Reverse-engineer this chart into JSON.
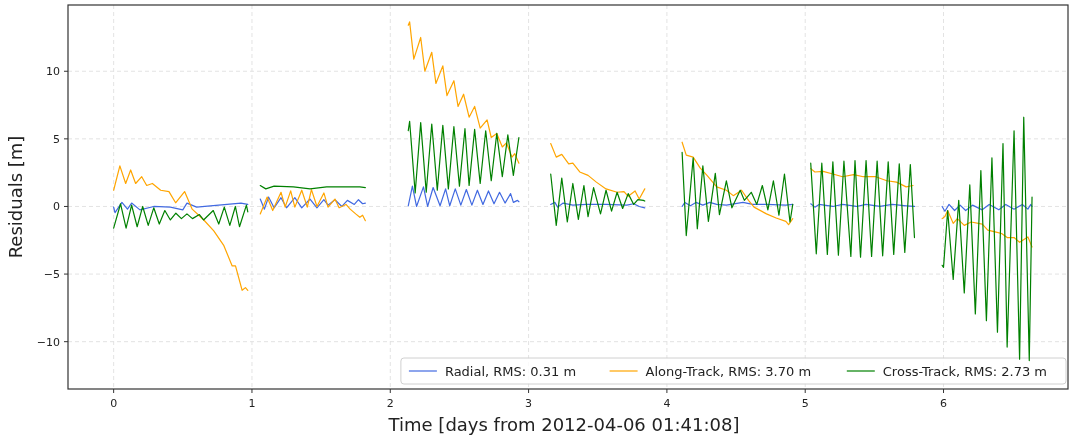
{
  "chart_data": {
    "type": "line",
    "xlabel": "Time [days from 2012-04-06 01:41:08]",
    "ylabel": "Residuals [m]",
    "xlim": [
      -0.33,
      6.9
    ],
    "ylim": [
      -13.5,
      14.9
    ],
    "xticks": [
      0,
      1,
      2,
      3,
      4,
      5,
      6
    ],
    "yticks": [
      {
        "value": -10,
        "label": "−10"
      },
      {
        "value": -5,
        "label": "−5"
      },
      0,
      5,
      10
    ],
    "grid": true,
    "legend": "bottom right",
    "line_style": "solid",
    "marker": "none",
    "series": [
      {
        "name": "Radial, RMS: 0.31 m",
        "color": "#4169e1",
        "x": [
          0,
          0.01,
          0.06,
          0.1,
          0.13,
          0.19,
          0.29,
          0.41,
          0.5,
          0.53,
          0.6,
          0.7,
          0.82,
          0.92,
          0.97,
          1.01,
          1.06,
          1.09,
          1.12,
          1.16,
          1.21,
          1.25,
          1.31,
          1.36,
          1.42,
          1.47,
          1.52,
          1.55,
          1.6,
          1.65,
          1.69,
          1.74,
          1.77,
          1.8,
          1.82,
          2.0,
          2.13,
          2.16,
          2.19,
          2.24,
          2.27,
          2.31,
          2.36,
          2.4,
          2.43,
          2.47,
          2.51,
          2.55,
          2.59,
          2.63,
          2.67,
          2.71,
          2.75,
          2.79,
          2.83,
          2.87,
          2.89,
          2.92,
          2.93,
          3.05,
          3.16,
          3.19,
          3.21,
          3.25,
          3.32,
          3.42,
          3.56,
          3.71,
          3.76,
          3.8,
          3.84,
          4.0,
          4.11,
          4.13,
          4.17,
          4.21,
          4.26,
          4.31,
          4.36,
          4.43,
          4.55,
          4.62,
          4.72,
          4.86,
          4.91,
          4.98,
          5.04,
          5.07,
          5.1,
          5.2,
          5.27,
          5.37,
          5.44,
          5.54,
          5.63,
          5.73,
          5.79,
          5.9,
          5.99,
          6.01,
          6.04,
          6.08,
          6.12,
          6.16,
          6.21,
          6.28,
          6.33,
          6.4,
          6.45,
          6.51,
          6.57,
          6.61,
          6.63,
          6.64
        ],
        "values": [
          -0.05,
          -0.45,
          0.3,
          -0.2,
          0.25,
          -0.25,
          0,
          -0.05,
          -0.25,
          0.25,
          -0.05,
          0.05,
          0.15,
          0.25,
          0.15,
          null,
          0.55,
          -0.2,
          0.7,
          -0.1,
          0.65,
          -0.1,
          0.65,
          -0.1,
          0.55,
          -0.1,
          0.5,
          0.1,
          0.5,
          0,
          0.45,
          0.15,
          0.5,
          0.2,
          0.25,
          null,
          0.05,
          1.5,
          0,
          1.45,
          0,
          1.4,
          0.05,
          1.3,
          0.05,
          1.3,
          0.1,
          1.25,
          0.1,
          1.2,
          0.15,
          1.15,
          0.2,
          1.05,
          0.25,
          0.95,
          0.3,
          0.45,
          0.35,
          null,
          0.15,
          0.3,
          -0.05,
          0.25,
          0.1,
          0.15,
          0.15,
          0.1,
          0.2,
          0,
          -0.1,
          null,
          0,
          0.3,
          0.05,
          0.3,
          0.1,
          0.3,
          0.15,
          0.1,
          0.3,
          0.15,
          0.15,
          0.1,
          0.15,
          null,
          0.2,
          -0.05,
          0.15,
          0,
          0.15,
          0,
          0.15,
          0,
          0.15,
          0.05,
          0,
          null,
          0,
          -0.35,
          0.15,
          -0.3,
          0.1,
          -0.3,
          0.1,
          -0.25,
          0.15,
          -0.25,
          0.15,
          -0.2,
          0.15,
          -0.2,
          0.15,
          0
        ]
      },
      {
        "name": "Along-Track, RMS: 3.70 m",
        "color": "#ffa500",
        "x": [
          0,
          0.045,
          0.087,
          0.123,
          0.159,
          0.203,
          0.239,
          0.28,
          0.34,
          0.4,
          0.448,
          0.513,
          0.568,
          0.652,
          0.724,
          0.797,
          0.857,
          0.881,
          0.929,
          0.953,
          0.97,
          1.01,
          1.06,
          1.11,
          1.15,
          1.21,
          1.24,
          1.28,
          1.31,
          1.36,
          1.4,
          1.43,
          1.47,
          1.52,
          1.55,
          1.6,
          1.63,
          1.68,
          1.71,
          1.75,
          1.78,
          1.8,
          1.82,
          2.0,
          2.13,
          2.14,
          2.17,
          2.22,
          2.25,
          2.3,
          2.33,
          2.38,
          2.41,
          2.46,
          2.49,
          2.53,
          2.57,
          2.61,
          2.65,
          2.7,
          2.73,
          2.77,
          2.81,
          2.84,
          2.88,
          2.9,
          2.93,
          3.05,
          3.16,
          3.2,
          3.24,
          3.29,
          3.32,
          3.37,
          3.43,
          3.49,
          3.56,
          3.64,
          3.69,
          3.72,
          3.77,
          3.8,
          3.84,
          4.0,
          4.11,
          4.14,
          4.19,
          4.24,
          4.29,
          4.36,
          4.43,
          4.48,
          4.54,
          4.59,
          4.63,
          4.72,
          4.79,
          4.86,
          4.88,
          4.91,
          4.98,
          5.04,
          5.07,
          5.13,
          5.2,
          5.27,
          5.35,
          5.42,
          5.51,
          5.59,
          5.66,
          5.73,
          5.78,
          5.9,
          5.99,
          6.01,
          6.03,
          6.07,
          6.1,
          6.15,
          6.2,
          6.28,
          6.32,
          6.38,
          6.42,
          6.46,
          6.51,
          6.55,
          6.61,
          6.64
        ],
        "values": [
          1.2,
          3.0,
          1.7,
          2.7,
          1.7,
          2.2,
          1.55,
          1.7,
          1.2,
          1.1,
          0.27,
          1.1,
          -0.2,
          -1.0,
          -1.8,
          -2.9,
          -4.4,
          -4.4,
          -6.2,
          -6.0,
          -6.2,
          null,
          -0.55,
          0.7,
          -0.3,
          1.05,
          -0.05,
          1.15,
          -0.05,
          1.2,
          -0.05,
          1.25,
          0,
          1.0,
          -0.05,
          0.55,
          -0.1,
          0.15,
          -0.2,
          -0.55,
          -0.8,
          -0.65,
          -1.05,
          null,
          13.4,
          13.65,
          10.9,
          12.5,
          10.0,
          11.4,
          9.1,
          10.4,
          8.2,
          9.3,
          7.4,
          8.3,
          6.6,
          7.4,
          5.8,
          6.4,
          5.1,
          5.4,
          4.4,
          4.7,
          3.65,
          3.9,
          3.2,
          null,
          4.65,
          3.65,
          3.85,
          3.15,
          3.2,
          2.55,
          2.3,
          1.8,
          1.3,
          1.05,
          1.1,
          0.75,
          1.15,
          0.55,
          1.3,
          null,
          4.75,
          3.8,
          3.65,
          2.85,
          2.3,
          1.45,
          1.2,
          0.8,
          1.2,
          0.45,
          -0.05,
          -0.55,
          -0.85,
          -1.1,
          -1.35,
          -0.9,
          null,
          2.8,
          2.55,
          2.6,
          2.4,
          2.2,
          2.35,
          2.2,
          2.2,
          1.9,
          1.8,
          1.45,
          1.55,
          null,
          -0.9,
          -0.75,
          -0.3,
          -1.25,
          -0.9,
          -1.4,
          -1.15,
          -1.3,
          -1.75,
          -1.9,
          -2.0,
          -2.3,
          -2.3,
          -2.65,
          -2.25,
          -3.0
        ]
      },
      {
        "name": "Cross-Track, RMS: 2.73 m",
        "color": "#008000",
        "x": [
          0,
          0.05,
          0.09,
          0.13,
          0.17,
          0.21,
          0.25,
          0.29,
          0.33,
          0.37,
          0.41,
          0.45,
          0.49,
          0.53,
          0.57,
          0.62,
          0.65,
          0.72,
          0.76,
          0.8,
          0.84,
          0.88,
          0.91,
          0.96,
          0.97,
          1.01,
          1.06,
          1.1,
          1.16,
          1.3,
          1.42,
          1.54,
          1.78,
          1.82,
          2.0,
          2.13,
          2.14,
          2.18,
          2.22,
          2.26,
          2.3,
          2.34,
          2.38,
          2.42,
          2.46,
          2.5,
          2.54,
          2.57,
          2.61,
          2.65,
          2.69,
          2.73,
          2.77,
          2.81,
          2.85,
          2.89,
          2.93,
          3.05,
          3.16,
          3.2,
          3.24,
          3.28,
          3.32,
          3.36,
          3.4,
          3.43,
          3.47,
          3.52,
          3.56,
          3.6,
          3.64,
          3.68,
          3.72,
          3.76,
          3.79,
          3.83,
          3.84,
          4.0,
          4.11,
          4.14,
          4.19,
          4.22,
          4.26,
          4.3,
          4.35,
          4.38,
          4.43,
          4.47,
          4.53,
          4.56,
          4.61,
          4.65,
          4.69,
          4.73,
          4.77,
          4.81,
          4.85,
          4.89,
          4.91,
          4.98,
          5.04,
          5.08,
          5.12,
          5.16,
          5.2,
          5.24,
          5.28,
          5.33,
          5.36,
          5.4,
          5.44,
          5.48,
          5.52,
          5.56,
          5.6,
          5.64,
          5.68,
          5.72,
          5.76,
          5.79,
          5.9,
          5.99,
          6.0,
          6.03,
          6.07,
          6.11,
          6.15,
          6.19,
          6.23,
          6.27,
          6.31,
          6.35,
          6.39,
          6.43,
          6.46,
          6.51,
          6.55,
          6.58,
          6.62,
          6.64
        ],
        "values": [
          -1.6,
          0.2,
          -1.6,
          0.1,
          -1.5,
          0,
          -1.4,
          -0.1,
          -1.3,
          -0.3,
          -1.0,
          -0.5,
          -0.9,
          -0.55,
          -0.9,
          -0.6,
          -1.0,
          -0.3,
          -1.3,
          -0.05,
          -1.4,
          0,
          -1.5,
          0.1,
          -0.4,
          null,
          1.55,
          1.3,
          1.5,
          1.45,
          1.3,
          1.45,
          1.45,
          1.4,
          null,
          5.6,
          6.3,
          1.0,
          6.2,
          1.05,
          6.1,
          1.2,
          6.0,
          1.3,
          5.9,
          1.5,
          5.75,
          1.55,
          5.7,
          1.7,
          5.6,
          1.9,
          5.4,
          2.2,
          5.3,
          2.3,
          5.1,
          null,
          2.4,
          -1.4,
          2.1,
          -1.15,
          1.7,
          -0.95,
          1.55,
          -0.75,
          1.4,
          -0.55,
          1.2,
          -0.35,
          1.05,
          -0.15,
          0.95,
          0.15,
          0.5,
          0.45,
          0.4,
          null,
          4.0,
          -2.15,
          3.6,
          -1.65,
          3.0,
          -1.1,
          2.45,
          -0.6,
          1.9,
          -0.1,
          1.2,
          0.45,
          1.05,
          0.15,
          1.55,
          -0.25,
          1.9,
          -0.65,
          2.4,
          -1.15,
          0.15,
          null,
          3.2,
          -3.5,
          3.2,
          -3.55,
          3.3,
          -3.6,
          3.35,
          -3.7,
          3.4,
          -3.75,
          3.4,
          -3.7,
          3.35,
          -3.65,
          3.3,
          -3.55,
          3.15,
          -3.4,
          3.1,
          -2.3,
          null,
          -4.35,
          -4.5,
          -0.3,
          -5.4,
          0.45,
          -6.4,
          1.6,
          -7.95,
          2.65,
          -8.45,
          3.6,
          -9.3,
          4.65,
          -10.4,
          5.6,
          -11.3,
          6.6,
          -11.4,
          0.7
        ]
      }
    ]
  }
}
